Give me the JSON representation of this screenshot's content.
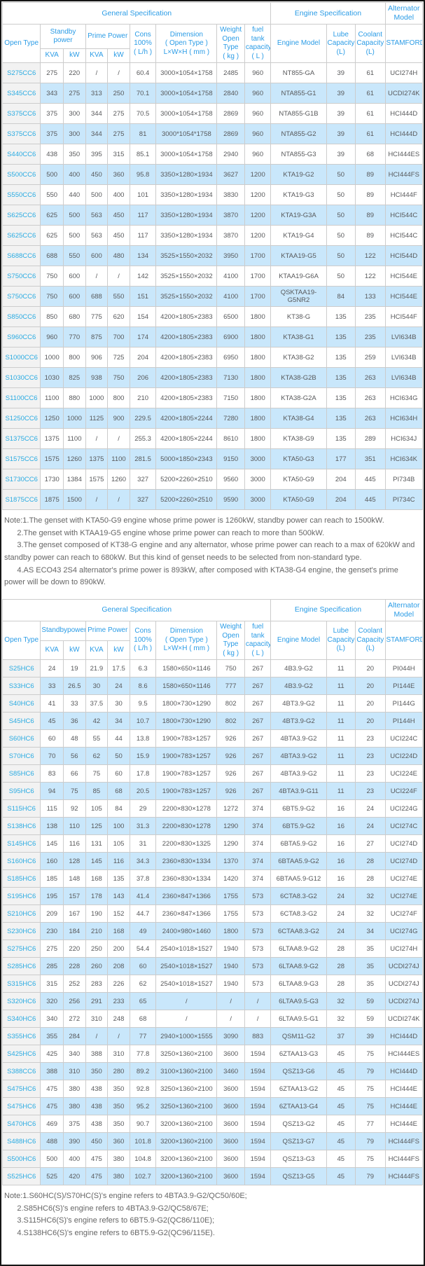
{
  "table1": {
    "group_headers": {
      "general": "General Specification",
      "engine": "Engine Specification",
      "alternator": "Alternator\nModel"
    },
    "headers": {
      "open_type": "Open Type",
      "standby": "Standby\npower",
      "prime": "Prime Power",
      "kva1": "KVA",
      "kw1": "kW",
      "kva2": "KVA",
      "kw2": "kW",
      "cons": "Cons\n100%\n( L/h )",
      "dimension": "Dimension\n( Open Type )\nL×W×H ( mm )",
      "weight": "Weight\nOpen Type\n( kg )",
      "fuel": "fuel tank\ncapacity\n( L )",
      "engine_model": "Engine Model",
      "lube": "Lube\nCapacity\n(L)",
      "coolant": "Coolant\nCapacity\n(L)",
      "stamford": "STAMFORD"
    },
    "rows": [
      [
        "S275CC6",
        "275",
        "220",
        "/",
        "/",
        "60.4",
        "3000×1054×1758",
        "2485",
        "960",
        "NT855-GA",
        "39",
        "61",
        "UCI274H"
      ],
      [
        "S345CC6",
        "343",
        "275",
        "313",
        "250",
        "70.1",
        "3000×1054×1758",
        "2840",
        "960",
        "NTA855-G1",
        "39",
        "61",
        "UCDI274K"
      ],
      [
        "S375CC6",
        "375",
        "300",
        "344",
        "275",
        "70.5",
        "3000×1054×1758",
        "2869",
        "960",
        "NTA855-G1B",
        "39",
        "61",
        "HCI444D"
      ],
      [
        "S375CC6",
        "375",
        "300",
        "344",
        "275",
        "81",
        "3000*1054*1758",
        "2869",
        "960",
        "NTA855-G2",
        "39",
        "61",
        "HCI444D"
      ],
      [
        "S440CC6",
        "438",
        "350",
        "395",
        "315",
        "85.1",
        "3000×1054×1758",
        "2940",
        "960",
        "NTA855-G3",
        "39",
        "68",
        "HCI444ES"
      ],
      [
        "S500CC6",
        "500",
        "400",
        "450",
        "360",
        "95.8",
        "3350×1280×1934",
        "3627",
        "1200",
        "KTA19-G2",
        "50",
        "89",
        "HCI444FS"
      ],
      [
        "S550CC6",
        "550",
        "440",
        "500",
        "400",
        "101",
        "3350×1280×1934",
        "3830",
        "1200",
        "KTA19-G3",
        "50",
        "89",
        "HCI444F"
      ],
      [
        "S625CC6",
        "625",
        "500",
        "563",
        "450",
        "117",
        "3350×1280×1934",
        "3870",
        "1200",
        "KTA19-G3A",
        "50",
        "89",
        "HCI544C"
      ],
      [
        "S625CC6",
        "625",
        "500",
        "563",
        "450",
        "117",
        "3350×1280×1934",
        "3870",
        "1200",
        "KTA19-G4",
        "50",
        "89",
        "HCI544C"
      ],
      [
        "S688CC6",
        "688",
        "550",
        "600",
        "480",
        "134",
        "3525×1550×2032",
        "3950",
        "1700",
        "KTAA19-G5",
        "50",
        "122",
        "HCI544D"
      ],
      [
        "S750CC6",
        "750",
        "600",
        "/",
        "/",
        "142",
        "3525×1550×2032",
        "4100",
        "1700",
        "KTAA19-G6A",
        "50",
        "122",
        "HCI544E"
      ],
      [
        "S750CC6",
        "750",
        "600",
        "688",
        "550",
        "151",
        "3525×1550×2032",
        "4100",
        "1700",
        "QSKTAA19-G5NR2",
        "84",
        "133",
        "HCI544E"
      ],
      [
        "S850CC6",
        "850",
        "680",
        "775",
        "620",
        "154",
        "4200×1805×2383",
        "6500",
        "1800",
        "KT38-G",
        "135",
        "235",
        "HCI544F"
      ],
      [
        "S960CC6",
        "960",
        "770",
        "875",
        "700",
        "174",
        "4200×1805×2383",
        "6900",
        "1800",
        "KTA38-G1",
        "135",
        "235",
        "LVI634B"
      ],
      [
        "S1000CC6",
        "1000",
        "800",
        "906",
        "725",
        "204",
        "4200×1805×2383",
        "6950",
        "1800",
        "KTA38-G2",
        "135",
        "259",
        "LVI634B"
      ],
      [
        "S1030CC6",
        "1030",
        "825",
        "938",
        "750",
        "206",
        "4200×1805×2383",
        "7130",
        "1800",
        "KTA38-G2B",
        "135",
        "263",
        "LVI634B"
      ],
      [
        "S1100CC6",
        "1100",
        "880",
        "1000",
        "800",
        "210",
        "4200×1805×2383",
        "7150",
        "1800",
        "KTA38-G2A",
        "135",
        "263",
        "HCI634G"
      ],
      [
        "S1250CC6",
        "1250",
        "1000",
        "1125",
        "900",
        "229.5",
        "4200×1805×2244",
        "7280",
        "1800",
        "KTA38-G4",
        "135",
        "263",
        "HCI634H"
      ],
      [
        "S1375CC6",
        "1375",
        "1100",
        "/",
        "/",
        "255.3",
        "4200×1805×2244",
        "8610",
        "1800",
        "KTA38-G9",
        "135",
        "289",
        "HCI634J"
      ],
      [
        "S1575CC6",
        "1575",
        "1260",
        "1375",
        "1100",
        "281.5",
        "5000×1850×2343",
        "9150",
        "3000",
        "KTA50-G3",
        "177",
        "351",
        "HCI634K"
      ],
      [
        "S1730CC6",
        "1730",
        "1384",
        "1575",
        "1260",
        "327",
        "5200×2260×2510",
        "9560",
        "3000",
        "KTA50-G9",
        "204",
        "445",
        "PI734B"
      ],
      [
        "S1875CC6",
        "1875",
        "1500",
        "/",
        "/",
        "327",
        "5200×2260×2510",
        "9590",
        "3000",
        "KTA50-G9",
        "204",
        "445",
        "PI734C"
      ]
    ]
  },
  "note1": {
    "lines": [
      "Note:1.The genset with KTA50-G9 engine whose prime power is 1260kW, standby power can reach to 1500kW.",
      "      2.The genset with KTAA19-G5 engine whose prime power can reach to more than 500kW.",
      "      3.The genset composed of KT38-G engine and any alternator, whose prime power can reach to a max of 620kW and standby power can reach to 680kW. But this kind of genset needs to be selected from non-standard type.",
      "      4.AS ECO43 2S4 alternator's prime power is 893kW, after composed with KTA38-G4 engine, the genset's prime power will be down to 890kW."
    ]
  },
  "table2": {
    "group_headers": {
      "general": "General Specification",
      "engine": "Engine Specification",
      "alternator": "Alternator\nModel"
    },
    "headers": {
      "open_type": "Open Type",
      "standby": "Standbypower",
      "prime": "Prime Power",
      "kva1": "KVA",
      "kw1": "kW",
      "kva2": "KVA",
      "kw2": "kW",
      "cons": "Cons\n100%\n( L/h )",
      "dimension": "Dimension\n( Open Type )\nL×W×H ( mm )",
      "weight": "Weight\nOpen Type\n( kg )",
      "fuel": "fuel tank\ncapacity\n( L )",
      "engine_model": "Engine Model",
      "lube": "Lube\nCapacity\n(L)",
      "coolant": "Coolant\nCapacity\n(L)",
      "stamford": "STAMFORD"
    },
    "rows": [
      [
        "S25HC6",
        "24",
        "19",
        "21.9",
        "17.5",
        "6.3",
        "1580×650×1146",
        "750",
        "267",
        "4B3.9-G2",
        "11",
        "20",
        "PI044H"
      ],
      [
        "S33HC6",
        "33",
        "26.5",
        "30",
        "24",
        "8.6",
        "1580×650×1146",
        "777",
        "267",
        "4B3.9-G2",
        "11",
        "20",
        "PI144E"
      ],
      [
        "S40HC6",
        "41",
        "33",
        "37.5",
        "30",
        "9.5",
        "1800×730×1290",
        "802",
        "267",
        "4BT3.9-G2",
        "11",
        "20",
        "PI144G"
      ],
      [
        "S45HC6",
        "45",
        "36",
        "42",
        "34",
        "10.7",
        "1800×730×1290",
        "802",
        "267",
        "4BT3.9-G2",
        "11",
        "20",
        "PI144H"
      ],
      [
        "S60HC6",
        "60",
        "48",
        "55",
        "44",
        "13.8",
        "1900×783×1257",
        "926",
        "267",
        "4BTA3.9-G2",
        "11",
        "23",
        "UCI224C"
      ],
      [
        "S70HC6",
        "70",
        "56",
        "62",
        "50",
        "15.9",
        "1900×783×1257",
        "926",
        "267",
        "4BTA3.9-G2",
        "11",
        "23",
        "UCI224D"
      ],
      [
        "S85HC6",
        "83",
        "66",
        "75",
        "60",
        "17.8",
        "1900×783×1257",
        "926",
        "267",
        "4BTA3.9-G2",
        "11",
        "23",
        "UCI224E"
      ],
      [
        "S95HC6",
        "94",
        "75",
        "85",
        "68",
        "20.5",
        "1900×783×1257",
        "926",
        "267",
        "4BTA3.9-G11",
        "11",
        "23",
        "UCI224F"
      ],
      [
        "S115HC6",
        "115",
        "92",
        "105",
        "84",
        "29",
        "2200×830×1278",
        "1272",
        "374",
        "6BT5.9-G2",
        "16",
        "24",
        "UCI224G"
      ],
      [
        "S138HC6",
        "138",
        "110",
        "125",
        "100",
        "31.3",
        "2200×830×1278",
        "1290",
        "374",
        "6BT5.9-G2",
        "16",
        "24",
        "UCI274C"
      ],
      [
        "S145HC6",
        "145",
        "116",
        "131",
        "105",
        "31",
        "2200×830×1325",
        "1290",
        "374",
        "6BTA5.9-G2",
        "16",
        "27",
        "UCI274D"
      ],
      [
        "S160HC6",
        "160",
        "128",
        "145",
        "116",
        "34.3",
        "2360×830×1334",
        "1370",
        "374",
        "6BTAA5.9-G2",
        "16",
        "28",
        "UCI274D"
      ],
      [
        "S185HC6",
        "185",
        "148",
        "168",
        "135",
        "37.8",
        "2360×830×1334",
        "1420",
        "374",
        "6BTAA5.9-G12",
        "16",
        "28",
        "UCI274E"
      ],
      [
        "S195HC6",
        "195",
        "157",
        "178",
        "143",
        "41.4",
        "2360×847×1366",
        "1755",
        "573",
        "6CTA8.3-G2",
        "24",
        "32",
        "UCI274E"
      ],
      [
        "S210HC6",
        "209",
        "167",
        "190",
        "152",
        "44.7",
        "2360×847×1366",
        "1755",
        "573",
        "6CTA8.3-G2",
        "24",
        "32",
        "UCI274F"
      ],
      [
        "S230HC6",
        "230",
        "184",
        "210",
        "168",
        "49",
        "2400×980×1460",
        "1800",
        "573",
        "6CTAA8.3-G2",
        "24",
        "34",
        "UCI274G"
      ],
      [
        "S275HC6",
        "275",
        "220",
        "250",
        "200",
        "54.4",
        "2540×1018×1527",
        "1940",
        "573",
        "6LTAA8.9-G2",
        "28",
        "35",
        "UCI274H"
      ],
      [
        "S285HC6",
        "285",
        "228",
        "260",
        "208",
        "60",
        "2540×1018×1527",
        "1940",
        "573",
        "6LTAA8.9-G2",
        "28",
        "35",
        "UCDI274J"
      ],
      [
        "S315HC6",
        "315",
        "252",
        "283",
        "226",
        "62",
        "2540×1018×1527",
        "1940",
        "573",
        "6LTAA8.9-G3",
        "28",
        "35",
        "UCDI274J"
      ],
      [
        "S320HC6",
        "320",
        "256",
        "291",
        "233",
        "65",
        "/",
        "/",
        "/",
        "6LTAA9.5-G3",
        "32",
        "59",
        "UCDI274J"
      ],
      [
        "S340HC6",
        "340",
        "272",
        "310",
        "248",
        "68",
        "/",
        "/",
        "/",
        "6LTAA9.5-G1",
        "32",
        "59",
        "UCDI274K"
      ],
      [
        "S355HC6",
        "355",
        "284",
        "/",
        "/",
        "77",
        "2940×1000×1555",
        "3090",
        "883",
        "QSM11-G2",
        "37",
        "39",
        "HCI444D"
      ],
      [
        "S425HC6",
        "425",
        "340",
        "388",
        "310",
        "77.8",
        "3250×1360×2100",
        "3600",
        "1594",
        "6ZTAA13-G3",
        "45",
        "75",
        "HCI444ES"
      ],
      [
        "S388CC6",
        "388",
        "310",
        "350",
        "280",
        "89.2",
        "3100×1360×2100",
        "3460",
        "1594",
        "QSZ13-G6",
        "45",
        "79",
        "HCI444D"
      ],
      [
        "S475HC6",
        "475",
        "380",
        "438",
        "350",
        "92.8",
        "3250×1360×2100",
        "3600",
        "1594",
        "6ZTAA13-G2",
        "45",
        "75",
        "HCI444E"
      ],
      [
        "S475HC6",
        "475",
        "380",
        "438",
        "350",
        "95.2",
        "3250×1360×2100",
        "3600",
        "1594",
        "6ZTAA13-G4",
        "45",
        "75",
        "HCI444E"
      ],
      [
        "S470HC6",
        "469",
        "375",
        "438",
        "350",
        "90.7",
        "3200×1360×2100",
        "3600",
        "1594",
        "QSZ13-G2",
        "45",
        "77",
        "HCI444E"
      ],
      [
        "S488HC6",
        "488",
        "390",
        "450",
        "360",
        "101.8",
        "3200×1360×2100",
        "3600",
        "1594",
        "QSZ13-G7",
        "45",
        "79",
        "HCI444FS"
      ],
      [
        "S500HC6",
        "500",
        "400",
        "475",
        "380",
        "104.8",
        "3200×1360×2100",
        "3600",
        "1594",
        "QSZ13-G3",
        "45",
        "75",
        "HCI444FS"
      ],
      [
        "S525HC6",
        "525",
        "420",
        "475",
        "380",
        "102.7",
        "3200×1360×2100",
        "3600",
        "1594",
        "QSZ13-G5",
        "45",
        "79",
        "HCI444FS"
      ]
    ]
  },
  "note2": {
    "lines": [
      "Note:1.S60HC(S)/S70HC(S)'s engine refers to 4BTA3.9-G2/QC50/60E;",
      "      2.S85HC6(S)'s engine refers to 4BTA3.9-G2/QC58/67E;",
      "      3.S115HC6(S)'s engine refers to 6BT5.9-G2(QC86/110E);",
      "      4.S138HC6(S)'s engine refers to 6BT5.9-G2(QC96/115E)."
    ]
  },
  "colors": {
    "header_text": "#2b9ce6",
    "link_text": "#29abe2",
    "row_stripe": "#c9e7fb",
    "model_col_bg": "#f2f2f2",
    "cell_text": "#58595b",
    "border": "#cccccc"
  }
}
